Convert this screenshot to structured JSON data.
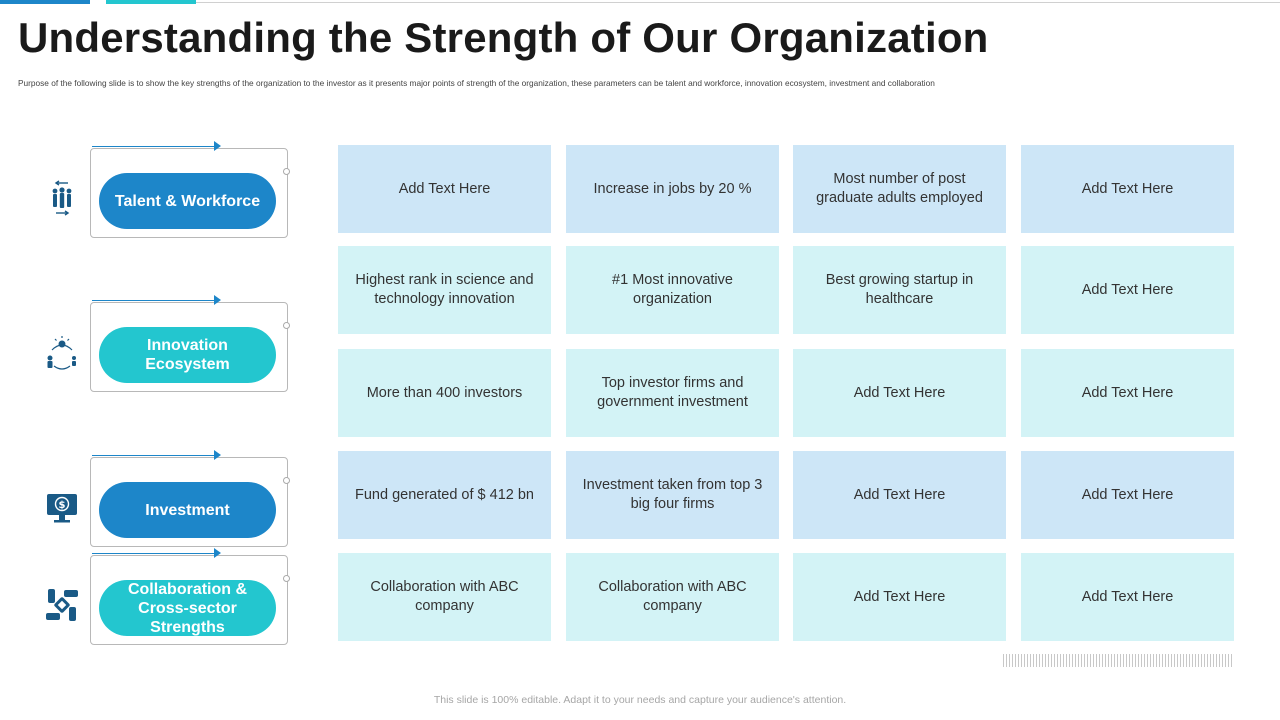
{
  "title": "Understanding the Strength of Our Organization",
  "subtitle": "Purpose of the following slide is to show the key strengths of the organization to the investor as it presents major points of strength of the organization, these parameters can be talent and workforce, innovation ecosystem, investment and collaboration",
  "categories": [
    {
      "label": "Talent & Workforce",
      "icon": "workforce-icon",
      "color": "#1d86c9"
    },
    {
      "label": "Innovation\nEcosystem",
      "icon": "innovation-icon",
      "color": "#23c6cf"
    },
    {
      "label": "Investment",
      "icon": "investment-icon",
      "color": "#1d86c9"
    },
    {
      "label": "Collaboration &\nCross-sector  Strengths",
      "icon": "collaboration-icon",
      "color": "#23c6cf"
    }
  ],
  "grid": [
    [
      "Add Text Here",
      "Increase in jobs by 20 %",
      "Most number of post graduate adults employed",
      "Add Text Here"
    ],
    [
      "Highest rank in science and technology innovation",
      "#1 Most innovative organization",
      "Best growing startup in healthcare",
      "Add Text Here"
    ],
    [
      "More than 400 investors",
      "Top investor firms and government investment",
      "Add Text Here",
      "Add Text Here"
    ],
    [
      "Fund generated of $ 412 bn",
      "Investment taken from top 3 big four firms",
      "Add Text Here",
      "Add Text Here"
    ],
    [
      "Collaboration with ABC company",
      "Collaboration with ABC company",
      "Add Text Here",
      "Add Text Here"
    ]
  ],
  "footer": "This slide is 100% editable. Adapt it to your needs and capture your audience's attention.",
  "colors": {
    "blue": "#1d86c9",
    "teal": "#23c6cf",
    "cell_blue": "#cde6f7",
    "cell_teal": "#d3f3f6",
    "icon_dark": "#1a5a86"
  }
}
